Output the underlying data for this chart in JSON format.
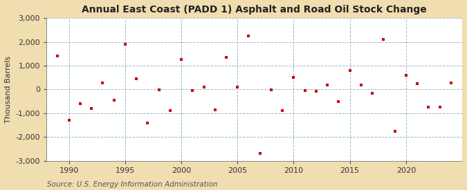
{
  "title": "Annual East Coast (PADD 1) Asphalt and Road Oil Stock Change",
  "ylabel": "Thousand Barrels",
  "source": "Source: U.S. Energy Information Administration",
  "figure_bg": "#f0ddb0",
  "plot_bg": "#ffffff",
  "marker_color": "#cc0000",
  "years": [
    1989,
    1990,
    1991,
    1992,
    1993,
    1994,
    1995,
    1996,
    1997,
    1998,
    1999,
    2000,
    2001,
    2002,
    2003,
    2004,
    2005,
    2006,
    2007,
    2008,
    2009,
    2010,
    2011,
    2012,
    2013,
    2014,
    2015,
    2016,
    2017,
    2018,
    2019,
    2020,
    2021,
    2022,
    2023,
    2024
  ],
  "values": [
    1400,
    -1300,
    -600,
    -800,
    280,
    -450,
    1900,
    450,
    -1400,
    -30,
    -900,
    1250,
    -50,
    100,
    -850,
    1350,
    100,
    2250,
    -2700,
    -30,
    -900,
    500,
    -50,
    -70,
    200,
    -500,
    800,
    200,
    -150,
    2100,
    -1750,
    600,
    250,
    -750,
    -750,
    280
  ],
  "ylim": [
    -3000,
    3000
  ],
  "yticks": [
    -3000,
    -2000,
    -1000,
    0,
    1000,
    2000,
    3000
  ],
  "xticks": [
    1990,
    1995,
    2000,
    2005,
    2010,
    2015,
    2020
  ],
  "xlim": [
    1988,
    2025
  ],
  "grid_color": "#99bbcc",
  "title_fontsize": 10,
  "axis_label_fontsize": 8,
  "tick_fontsize": 8,
  "source_fontsize": 7.5
}
